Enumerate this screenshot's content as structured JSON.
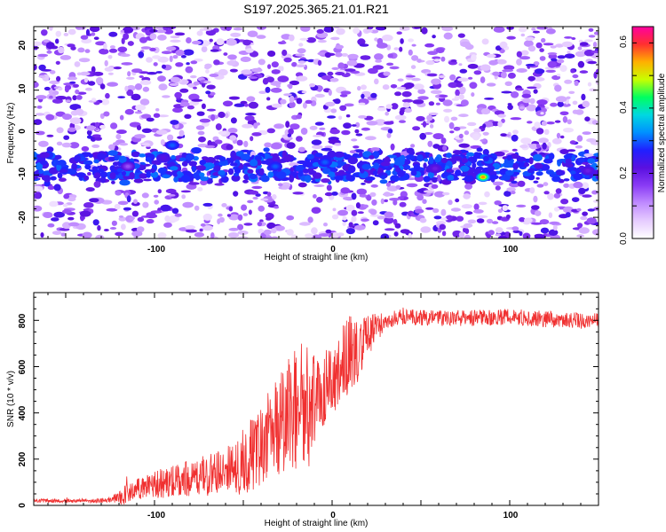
{
  "title": "S197.2025.365.21.01.R21",
  "colors": {
    "snr_line": "#f03030",
    "heatmap_background": "#ffffff",
    "colormap": [
      "#ffffff",
      "#e6ccff",
      "#c08cff",
      "#8a3cf5",
      "#5a10e0",
      "#2020ff",
      "#0090ff",
      "#00d8e0",
      "#00ff60",
      "#c8ff00",
      "#ffb000",
      "#ff3030",
      "#ff00a0"
    ]
  },
  "chart_data": [
    {
      "type": "heatmap",
      "title": "S197.2025.365.21.01.R21",
      "xlabel": "Height of straight line (km)",
      "ylabel": "Frequency (Hz)",
      "xlim": [
        -168,
        150
      ],
      "ylim": [
        -25,
        25
      ],
      "xticks": [
        -100,
        0,
        100
      ],
      "yticks": [
        -20,
        -10,
        0,
        10,
        20
      ],
      "colorbar": {
        "label": "Normalized spectral amplitude",
        "range": [
          0,
          0.65
        ],
        "ticks": [
          "0.0",
          "0.2",
          "0.4",
          "0.6"
        ]
      },
      "signal_band": {
        "frequency_hz": -8,
        "strongest_peaks": [
          {
            "x": 85,
            "y": -10.5,
            "amplitude": 0.55
          },
          {
            "x": -90,
            "y": -3,
            "amplitude": 0.3
          },
          {
            "x": -4,
            "y": -7,
            "amplitude": 0.3
          },
          {
            "x": -32,
            "y": -8,
            "amplitude": 0.3
          },
          {
            "x": -95,
            "y": -6,
            "amplitude": 0.22
          },
          {
            "x": 58,
            "y": -8.5,
            "amplitude": 0.2
          },
          {
            "x": 144,
            "y": -9,
            "amplitude": 0.2
          },
          {
            "x": -115,
            "y": -8,
            "amplitude": 0.15
          }
        ]
      }
    },
    {
      "type": "line",
      "xlabel": "Height of straight line (km)",
      "ylabel": "SNR (10 * v/v)",
      "xlim": [
        -168,
        150
      ],
      "ylim": [
        0,
        920
      ],
      "xticks": [
        -100,
        0,
        100
      ],
      "yticks": [
        0,
        200,
        400,
        600,
        800
      ],
      "series": [
        {
          "name": "SNR",
          "points": [
            [
              -168,
              20
            ],
            [
              -140,
              20
            ],
            [
              -125,
              22
            ],
            [
              -118,
              40
            ],
            [
              -112,
              70
            ],
            [
              -100,
              90
            ],
            [
              -85,
              110
            ],
            [
              -70,
              130
            ],
            [
              -55,
              160
            ],
            [
              -45,
              220
            ],
            [
              -38,
              290
            ],
            [
              -30,
              360
            ],
            [
              -22,
              400
            ],
            [
              -15,
              420
            ],
            [
              -10,
              460
            ],
            [
              -5,
              500
            ],
            [
              0,
              560
            ],
            [
              5,
              600
            ],
            [
              10,
              650
            ],
            [
              15,
              680
            ],
            [
              20,
              710
            ],
            [
              25,
              760
            ],
            [
              30,
              800
            ],
            [
              40,
              815
            ],
            [
              60,
              810
            ],
            [
              80,
              810
            ],
            [
              100,
              815
            ],
            [
              120,
              805
            ],
            [
              150,
              795
            ]
          ],
          "noise": [
            [
              -168,
              8
            ],
            [
              -125,
              10
            ],
            [
              -118,
              40
            ],
            [
              -100,
              60
            ],
            [
              -80,
              80
            ],
            [
              -60,
              100
            ],
            [
              -45,
              160
            ],
            [
              -30,
              230
            ],
            [
              -15,
              300
            ],
            [
              -5,
              160
            ],
            [
              10,
              170
            ],
            [
              20,
              110
            ],
            [
              30,
              35
            ],
            [
              150,
              35
            ]
          ]
        }
      ]
    }
  ]
}
